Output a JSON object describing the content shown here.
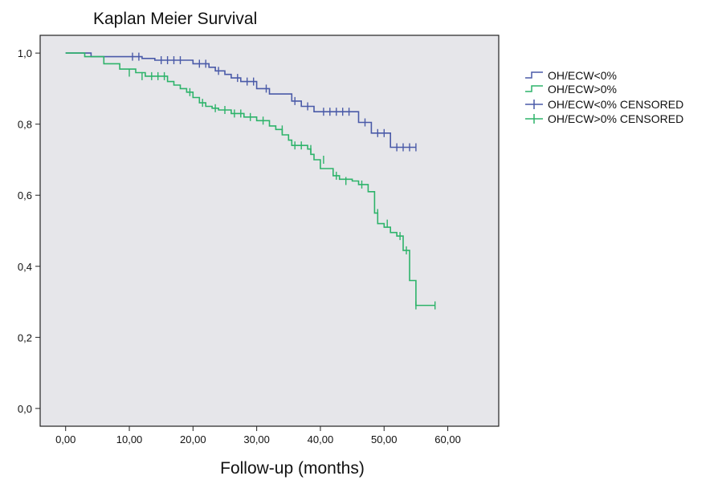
{
  "chart_data": {
    "type": "line",
    "title": "Kaplan Meier Survival",
    "xlabel": "Follow-up (months)",
    "ylabel": "",
    "xlim": [
      -4,
      68
    ],
    "ylim": [
      -0.05,
      1.05
    ],
    "x_ticks": [
      0,
      10,
      20,
      30,
      40,
      50,
      60
    ],
    "x_tick_labels": [
      "0,00",
      "10,00",
      "20,00",
      "30,00",
      "40,00",
      "50,00",
      "60,00"
    ],
    "y_ticks": [
      0,
      0.2,
      0.4,
      0.6,
      0.8,
      1.0
    ],
    "y_tick_labels": [
      "0,0",
      "0,2",
      "0,4",
      "0,6",
      "0,8",
      "1,0"
    ],
    "grid": false,
    "plot_background": "#e6e6ea",
    "legend_position": "right",
    "legend": [
      "OH/ECW<0%",
      "OH/ECW>0%",
      "OH/ECW<0% CENSORED",
      "OH/ECW>0% CENSORED"
    ],
    "series": [
      {
        "name": "OH/ECW<0%",
        "color": "#4a5aa8",
        "step": true,
        "x": [
          0,
          4,
          12,
          14,
          20,
          22.5,
          23.5,
          25,
          26,
          27.5,
          30,
          32,
          35.5,
          37,
          39,
          46,
          48,
          51,
          55
        ],
        "y": [
          1.0,
          0.99,
          0.985,
          0.98,
          0.97,
          0.96,
          0.95,
          0.94,
          0.93,
          0.92,
          0.9,
          0.885,
          0.865,
          0.85,
          0.835,
          0.805,
          0.775,
          0.735,
          0.735
        ],
        "censored_x": [
          10.5,
          11.5,
          15,
          16,
          17,
          18,
          21,
          22,
          24,
          27,
          28.5,
          29.5,
          31.5,
          36,
          38,
          40.5,
          41.5,
          42.5,
          43.5,
          44.5,
          47,
          49,
          50,
          52,
          53,
          54,
          55
        ],
        "censored_y": [
          0.99,
          0.99,
          0.98,
          0.98,
          0.98,
          0.98,
          0.97,
          0.97,
          0.95,
          0.93,
          0.92,
          0.92,
          0.9,
          0.865,
          0.85,
          0.835,
          0.835,
          0.835,
          0.835,
          0.835,
          0.805,
          0.775,
          0.775,
          0.735,
          0.735,
          0.735,
          0.735
        ]
      },
      {
        "name": "OH/ECW>0%",
        "color": "#2db36a",
        "step": true,
        "x": [
          0,
          3,
          6,
          8.5,
          11,
          12.5,
          16,
          17,
          18,
          19,
          20,
          21,
          22,
          23,
          24,
          26,
          28,
          30,
          32,
          33,
          34,
          35,
          35.5,
          38,
          38.5,
          39,
          40,
          42,
          43,
          45,
          46,
          47.5,
          48.5,
          49,
          50,
          51,
          52,
          53,
          54,
          55,
          58
        ],
        "y": [
          1.0,
          0.99,
          0.97,
          0.955,
          0.945,
          0.935,
          0.92,
          0.91,
          0.9,
          0.89,
          0.875,
          0.86,
          0.85,
          0.845,
          0.84,
          0.83,
          0.82,
          0.81,
          0.795,
          0.785,
          0.77,
          0.755,
          0.74,
          0.73,
          0.715,
          0.7,
          0.675,
          0.655,
          0.645,
          0.64,
          0.63,
          0.61,
          0.55,
          0.52,
          0.51,
          0.495,
          0.485,
          0.445,
          0.36,
          0.29,
          0.29
        ],
        "censored_x": [
          10,
          12,
          13.5,
          14.5,
          15.5,
          19.5,
          21.5,
          23.5,
          25,
          26.5,
          27.5,
          29,
          31,
          34,
          36,
          37,
          38.5,
          40.5,
          42.5,
          44,
          46.5,
          49,
          50.5,
          52.5,
          53.5,
          55,
          58
        ],
        "censored_y": [
          0.945,
          0.935,
          0.935,
          0.935,
          0.935,
          0.89,
          0.86,
          0.845,
          0.84,
          0.83,
          0.83,
          0.82,
          0.81,
          0.785,
          0.74,
          0.74,
          0.73,
          0.7,
          0.655,
          0.64,
          0.63,
          0.55,
          0.52,
          0.485,
          0.445,
          0.29,
          0.29
        ]
      }
    ]
  }
}
